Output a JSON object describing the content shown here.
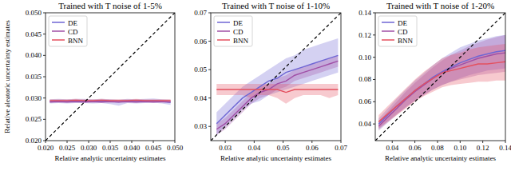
{
  "chart_data": [
    {
      "type": "line",
      "title": "Trained with T noise of 1-5%",
      "x_label": "Relative analytic uncertainty estimates",
      "y_label": "Relative aleatoric uncertainty estimates",
      "legend": "upper left",
      "xlim": [
        0.02,
        0.05
      ],
      "xticks": [
        {
          "value": 0.02,
          "label": "0.020"
        },
        0.025,
        {
          "value": 0.03,
          "label": "0.030"
        },
        0.035,
        {
          "value": 0.04,
          "label": "0.040"
        },
        0.045,
        {
          "value": 0.05,
          "label": "0.050"
        }
      ],
      "ylim": [
        0.02,
        0.05
      ],
      "yticks": [
        {
          "value": 0.02,
          "label": "0.020"
        },
        0.025,
        {
          "value": 0.03,
          "label": "0.030"
        },
        0.035,
        {
          "value": 0.04,
          "label": "0.040"
        },
        0.045,
        {
          "value": 0.05,
          "label": "0.050"
        }
      ],
      "x": [
        0.021,
        0.023,
        0.025,
        0.027,
        0.029,
        0.031,
        0.033,
        0.035,
        0.037,
        0.039,
        0.041,
        0.043,
        0.045,
        0.047,
        0.049
      ],
      "series": [
        {
          "name": "DE",
          "color": "#6f66d4",
          "values": [
            0.0292,
            0.0293,
            0.0292,
            0.0293,
            0.0293,
            0.0292,
            0.0293,
            0.0292,
            0.0291,
            0.0293,
            0.0292,
            0.0293,
            0.0294,
            0.0292,
            0.029
          ],
          "lower": [
            0.0287,
            0.0288,
            0.0287,
            0.0288,
            0.0288,
            0.0287,
            0.0288,
            0.0286,
            0.0282,
            0.0288,
            0.0287,
            0.0288,
            0.0289,
            0.0287,
            0.0284
          ],
          "upper": [
            0.0297,
            0.0298,
            0.0297,
            0.0298,
            0.0298,
            0.0297,
            0.0298,
            0.0297,
            0.0296,
            0.0298,
            0.0297,
            0.0298,
            0.0299,
            0.0297,
            0.0296
          ]
        },
        {
          "name": "CD",
          "color": "#a04fa6",
          "values": [
            0.0291,
            0.0292,
            0.0291,
            0.0292,
            0.0291,
            0.0292,
            0.0291,
            0.0292,
            0.0291,
            0.0292,
            0.0291,
            0.0292,
            0.0291,
            0.0292,
            0.0291
          ],
          "lower": [
            0.0288,
            0.0289,
            0.0288,
            0.0289,
            0.0288,
            0.0289,
            0.0288,
            0.0289,
            0.0288,
            0.0289,
            0.0288,
            0.0289,
            0.0288,
            0.0289,
            0.0288
          ],
          "upper": [
            0.0294,
            0.0295,
            0.0294,
            0.0295,
            0.0294,
            0.0295,
            0.0294,
            0.0295,
            0.0294,
            0.0295,
            0.0294,
            0.0295,
            0.0294,
            0.0295,
            0.0294
          ]
        },
        {
          "name": "BNN",
          "color": "#e4505f",
          "values": [
            0.0294,
            0.0294,
            0.0294,
            0.0295,
            0.0294,
            0.0294,
            0.0295,
            0.0294,
            0.0294,
            0.0294,
            0.0295,
            0.0294,
            0.0294,
            0.0294,
            0.0294
          ],
          "lower": [
            0.0291,
            0.0291,
            0.0291,
            0.0292,
            0.0291,
            0.0291,
            0.0292,
            0.0291,
            0.0291,
            0.0291,
            0.0292,
            0.0291,
            0.0291,
            0.0291,
            0.0291
          ],
          "upper": [
            0.0297,
            0.0297,
            0.0297,
            0.0298,
            0.0297,
            0.0297,
            0.0298,
            0.0297,
            0.0297,
            0.0297,
            0.0298,
            0.0297,
            0.0297,
            0.0297,
            0.0297
          ]
        },
        {
          "color": "#000000",
          "line_style": "dashed",
          "x": [
            0.02,
            0.05
          ],
          "values": [
            0.02,
            0.05
          ]
        }
      ]
    },
    {
      "type": "line",
      "title": "Trained with T noise of 1-10%",
      "x_label": "Relative analytic uncertainty estimates",
      "legend": "upper left",
      "xlim": [
        0.025,
        0.07
      ],
      "xticks": [
        0.03,
        0.04,
        0.05,
        0.06,
        0.07
      ],
      "ylim": [
        0.025,
        0.07
      ],
      "yticks": [
        0.03,
        0.04,
        0.05,
        0.06,
        0.07
      ],
      "x": [
        0.027,
        0.03,
        0.033,
        0.036,
        0.039,
        0.042,
        0.045,
        0.048,
        0.051,
        0.054,
        0.057,
        0.06,
        0.063,
        0.066,
        0.069
      ],
      "series": [
        {
          "name": "DE",
          "color": "#6f66d4",
          "values": [
            0.031,
            0.034,
            0.037,
            0.04,
            0.042,
            0.044,
            0.046,
            0.047,
            0.049,
            0.05,
            0.051,
            0.052,
            0.053,
            0.054,
            0.055
          ],
          "lower": [
            0.027,
            0.03,
            0.033,
            0.036,
            0.038,
            0.039,
            0.041,
            0.042,
            0.043,
            0.044,
            0.045,
            0.046,
            0.047,
            0.048,
            0.049
          ],
          "upper": [
            0.035,
            0.038,
            0.041,
            0.044,
            0.046,
            0.048,
            0.05,
            0.052,
            0.054,
            0.055,
            0.057,
            0.058,
            0.059,
            0.06,
            0.061
          ]
        },
        {
          "name": "CD",
          "color": "#a04fa6",
          "values": [
            0.029,
            0.031,
            0.034,
            0.037,
            0.04,
            0.042,
            0.043,
            0.045,
            0.046,
            0.048,
            0.049,
            0.05,
            0.051,
            0.052,
            0.053
          ],
          "lower": [
            0.027,
            0.029,
            0.032,
            0.035,
            0.038,
            0.04,
            0.041,
            0.043,
            0.044,
            0.046,
            0.047,
            0.048,
            0.049,
            0.05,
            0.051
          ],
          "upper": [
            0.031,
            0.033,
            0.036,
            0.039,
            0.042,
            0.044,
            0.045,
            0.047,
            0.048,
            0.05,
            0.051,
            0.052,
            0.053,
            0.054,
            0.055
          ]
        },
        {
          "name": "BNN",
          "color": "#e4505f",
          "values": [
            0.043,
            0.043,
            0.043,
            0.043,
            0.043,
            0.043,
            0.043,
            0.043,
            0.042,
            0.043,
            0.043,
            0.043,
            0.043,
            0.043,
            0.043
          ],
          "lower": [
            0.041,
            0.041,
            0.041,
            0.041,
            0.04,
            0.041,
            0.041,
            0.04,
            0.038,
            0.04,
            0.041,
            0.041,
            0.041,
            0.04,
            0.041
          ],
          "upper": [
            0.045,
            0.045,
            0.045,
            0.045,
            0.045,
            0.045,
            0.045,
            0.045,
            0.045,
            0.045,
            0.045,
            0.045,
            0.045,
            0.045,
            0.045
          ]
        },
        {
          "color": "#000000",
          "line_style": "dashed",
          "x": [
            0.025,
            0.07
          ],
          "values": [
            0.025,
            0.07
          ]
        }
      ]
    },
    {
      "type": "line",
      "title": "Trained with T noise of 1-20%",
      "x_label": "Relative analytic uncertainty estimates",
      "legend": "upper left",
      "xlim": [
        0.025,
        0.14
      ],
      "xticks": [
        0.04,
        0.06,
        0.08,
        {
          "value": 0.1,
          "label": "0.10"
        },
        0.12,
        0.14
      ],
      "ylim": [
        0.025,
        0.14
      ],
      "yticks": [
        0.04,
        0.06,
        0.08,
        {
          "value": 0.1,
          "label": "0.10"
        },
        0.12,
        0.14
      ],
      "x": [
        0.028,
        0.036,
        0.044,
        0.052,
        0.06,
        0.068,
        0.076,
        0.084,
        0.092,
        0.1,
        0.108,
        0.116,
        0.124,
        0.132,
        0.14
      ],
      "series": [
        {
          "name": "DE",
          "color": "#6f66d4",
          "values": [
            0.04,
            0.048,
            0.056,
            0.063,
            0.07,
            0.076,
            0.082,
            0.087,
            0.091,
            0.095,
            0.098,
            0.101,
            0.103,
            0.105,
            0.106
          ],
          "lower": [
            0.035,
            0.042,
            0.049,
            0.055,
            0.061,
            0.066,
            0.071,
            0.075,
            0.078,
            0.081,
            0.084,
            0.086,
            0.088,
            0.089,
            0.09
          ],
          "upper": [
            0.045,
            0.054,
            0.063,
            0.071,
            0.079,
            0.086,
            0.093,
            0.099,
            0.104,
            0.109,
            0.112,
            0.115,
            0.117,
            0.119,
            0.12
          ]
        },
        {
          "name": "CD",
          "color": "#a04fa6",
          "values": [
            0.038,
            0.046,
            0.054,
            0.062,
            0.069,
            0.075,
            0.081,
            0.086,
            0.09,
            0.093,
            0.096,
            0.099,
            0.101,
            0.103,
            0.104
          ],
          "lower": [
            0.034,
            0.041,
            0.048,
            0.055,
            0.061,
            0.066,
            0.071,
            0.075,
            0.078,
            0.08,
            0.082,
            0.084,
            0.085,
            0.086,
            0.087
          ],
          "upper": [
            0.042,
            0.051,
            0.06,
            0.069,
            0.077,
            0.084,
            0.091,
            0.097,
            0.102,
            0.106,
            0.11,
            0.113,
            0.116,
            0.118,
            0.12
          ]
        },
        {
          "name": "BNN",
          "color": "#e4505f",
          "values": [
            0.042,
            0.049,
            0.056,
            0.063,
            0.07,
            0.076,
            0.081,
            0.086,
            0.088,
            0.09,
            0.092,
            0.094,
            0.094,
            0.095,
            0.096
          ],
          "lower": [
            0.036,
            0.042,
            0.048,
            0.054,
            0.06,
            0.065,
            0.069,
            0.073,
            0.075,
            0.076,
            0.077,
            0.078,
            0.078,
            0.079,
            0.079
          ],
          "upper": [
            0.048,
            0.056,
            0.064,
            0.072,
            0.08,
            0.087,
            0.093,
            0.099,
            0.102,
            0.104,
            0.107,
            0.109,
            0.11,
            0.111,
            0.112
          ]
        },
        {
          "color": "#000000",
          "line_style": "dashed",
          "x": [
            0.025,
            0.14
          ],
          "values": [
            0.025,
            0.14
          ]
        }
      ]
    }
  ]
}
